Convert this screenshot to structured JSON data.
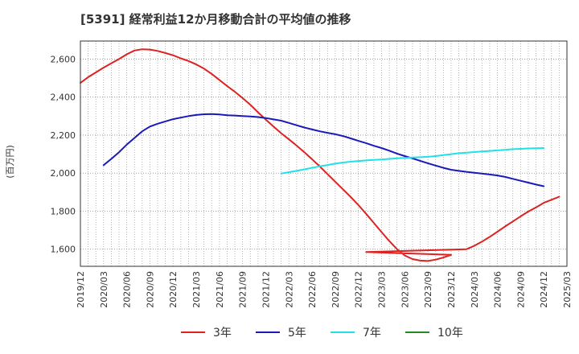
{
  "title": "[5391]  経常利益12か月移動合計の平均値の推移",
  "chart_data": {
    "type": "line",
    "title": "[5391]  経常利益12か月移動合計の平均値の推移",
    "ylabel": "(百万円)",
    "xlabel": "",
    "ylim": [
      1510,
      2695
    ],
    "x_ticks": [
      "2019/12",
      "2020/03",
      "2020/06",
      "2020/09",
      "2020/12",
      "2021/03",
      "2021/06",
      "2021/09",
      "2021/12",
      "2022/03",
      "2022/06",
      "2022/09",
      "2022/12",
      "2023/03",
      "2023/06",
      "2023/09",
      "2023/12",
      "2024/03",
      "2024/06",
      "2024/09",
      "2024/12",
      "2025/03"
    ],
    "y_ticks": [
      1600,
      1800,
      2000,
      2200,
      2400,
      2600
    ],
    "y_tick_labels": [
      "1,600",
      "1,800",
      "2,000",
      "2,200",
      "2,400",
      "2,600"
    ],
    "grid": true,
    "legend_position": "bottom",
    "series": [
      {
        "name": "3年",
        "color": "#dd2222",
        "points": [
          [
            "2019/12",
            2475
          ],
          [
            "2020/01",
            2505
          ],
          [
            "2020/02",
            2530
          ],
          [
            "2020/03",
            2555
          ],
          [
            "2020/04",
            2578
          ],
          [
            "2020/05",
            2600
          ],
          [
            "2020/06",
            2625
          ],
          [
            "2020/07",
            2645
          ],
          [
            "2020/08",
            2652
          ],
          [
            "2020/09",
            2650
          ],
          [
            "2020/10",
            2643
          ],
          [
            "2020/11",
            2632
          ],
          [
            "2020/12",
            2620
          ],
          [
            "2021/01",
            2604
          ],
          [
            "2021/02",
            2590
          ],
          [
            "2021/03",
            2572
          ],
          [
            "2021/04",
            2550
          ],
          [
            "2021/05",
            2522
          ],
          [
            "2021/06",
            2490
          ],
          [
            "2021/07",
            2458
          ],
          [
            "2021/08",
            2428
          ],
          [
            "2021/09",
            2395
          ],
          [
            "2021/10",
            2360
          ],
          [
            "2021/11",
            2320
          ],
          [
            "2021/12",
            2282
          ],
          [
            "2022/01",
            2245
          ],
          [
            "2022/02",
            2210
          ],
          [
            "2022/03",
            2178
          ],
          [
            "2022/04",
            2145
          ],
          [
            "2022/05",
            2110
          ],
          [
            "2022/06",
            2073
          ],
          [
            "2022/07",
            2035
          ],
          [
            "2022/08",
            1995
          ],
          [
            "2022/09",
            1955
          ],
          [
            "2022/10",
            1915
          ],
          [
            "2022/11",
            1875
          ],
          [
            "2022/12",
            1832
          ],
          [
            "2023/01",
            1786
          ],
          [
            "2023/02",
            1738
          ],
          [
            "2023/03",
            1690
          ],
          [
            "2023/04",
            1643
          ],
          [
            "2023/05",
            1600
          ],
          [
            "2023/06",
            1567
          ],
          [
            "2023/07",
            1548
          ],
          [
            "2023/08",
            1540
          ],
          [
            "2023/09",
            1538
          ],
          [
            "2023/10",
            1545
          ],
          [
            "2023/11",
            1556
          ],
          [
            "2023/12",
            1570
          ],
          [
            "2023/01",
            1585
          ],
          [
            "2024/02",
            1600
          ],
          [
            "2024/03",
            1618
          ],
          [
            "2024/04",
            1640
          ],
          [
            "2024/05",
            1665
          ],
          [
            "2024/06",
            1692
          ],
          [
            "2024/07",
            1720
          ],
          [
            "2024/08",
            1746
          ],
          [
            "2024/09",
            1773
          ],
          [
            "2024/10",
            1798
          ],
          [
            "2024/11",
            1820
          ],
          [
            "2024/12",
            1844
          ],
          [
            "2025/01",
            1860
          ],
          [
            "2025/02",
            1876
          ]
        ]
      },
      {
        "name": "5年",
        "color": "#1a1ab8",
        "points": [
          [
            "2020/03",
            2042
          ],
          [
            "2020/04",
            2075
          ],
          [
            "2020/05",
            2110
          ],
          [
            "2020/06",
            2150
          ],
          [
            "2020/07",
            2185
          ],
          [
            "2020/08",
            2220
          ],
          [
            "2020/09",
            2245
          ],
          [
            "2020/10",
            2260
          ],
          [
            "2020/11",
            2272
          ],
          [
            "2020/12",
            2284
          ],
          [
            "2021/01",
            2292
          ],
          [
            "2021/02",
            2300
          ],
          [
            "2021/03",
            2306
          ],
          [
            "2021/04",
            2310
          ],
          [
            "2021/05",
            2311
          ],
          [
            "2021/06",
            2309
          ],
          [
            "2021/07",
            2305
          ],
          [
            "2021/08",
            2303
          ],
          [
            "2021/09",
            2300
          ],
          [
            "2021/10",
            2298
          ],
          [
            "2021/11",
            2295
          ],
          [
            "2021/12",
            2290
          ],
          [
            "2022/01",
            2283
          ],
          [
            "2022/02",
            2276
          ],
          [
            "2022/03",
            2264
          ],
          [
            "2022/04",
            2252
          ],
          [
            "2022/05",
            2240
          ],
          [
            "2022/06",
            2230
          ],
          [
            "2022/07",
            2220
          ],
          [
            "2022/08",
            2212
          ],
          [
            "2022/09",
            2205
          ],
          [
            "2022/10",
            2195
          ],
          [
            "2022/11",
            2183
          ],
          [
            "2022/12",
            2170
          ],
          [
            "2023/01",
            2158
          ],
          [
            "2023/02",
            2144
          ],
          [
            "2023/03",
            2132
          ],
          [
            "2023/04",
            2118
          ],
          [
            "2023/05",
            2103
          ],
          [
            "2023/06",
            2090
          ],
          [
            "2023/07",
            2078
          ],
          [
            "2023/08",
            2065
          ],
          [
            "2023/09",
            2052
          ],
          [
            "2023/10",
            2040
          ],
          [
            "2023/11",
            2028
          ],
          [
            "2023/12",
            2018
          ],
          [
            "2024/01",
            2012
          ],
          [
            "2024/02",
            2007
          ],
          [
            "2024/03",
            2002
          ],
          [
            "2024/04",
            1998
          ],
          [
            "2024/05",
            1993
          ],
          [
            "2024/06",
            1988
          ],
          [
            "2024/07",
            1980
          ],
          [
            "2024/08",
            1970
          ],
          [
            "2024/09",
            1960
          ],
          [
            "2024/10",
            1950
          ],
          [
            "2024/11",
            1940
          ],
          [
            "2024/12",
            1931
          ]
        ]
      },
      {
        "name": "7年",
        "color": "#22e0e8",
        "points": [
          [
            "2022/02",
            1998
          ],
          [
            "2022/03",
            2005
          ],
          [
            "2022/04",
            2012
          ],
          [
            "2022/05",
            2020
          ],
          [
            "2022/06",
            2028
          ],
          [
            "2022/07",
            2036
          ],
          [
            "2022/08",
            2043
          ],
          [
            "2022/09",
            2050
          ],
          [
            "2022/10",
            2056
          ],
          [
            "2022/11",
            2060
          ],
          [
            "2022/12",
            2064
          ],
          [
            "2023/01",
            2067
          ],
          [
            "2023/02",
            2070
          ],
          [
            "2023/03",
            2072
          ],
          [
            "2023/04",
            2075
          ],
          [
            "2023/05",
            2078
          ],
          [
            "2023/06",
            2080
          ],
          [
            "2023/07",
            2082
          ],
          [
            "2023/08",
            2084
          ],
          [
            "2023/09",
            2086
          ],
          [
            "2023/10",
            2090
          ],
          [
            "2023/11",
            2095
          ],
          [
            "2023/12",
            2100
          ],
          [
            "2024/01",
            2105
          ],
          [
            "2024/02",
            2108
          ],
          [
            "2024/03",
            2111
          ],
          [
            "2024/04",
            2114
          ],
          [
            "2024/05",
            2117
          ],
          [
            "2024/06",
            2120
          ],
          [
            "2024/07",
            2123
          ],
          [
            "2024/08",
            2126
          ],
          [
            "2024/09",
            2128
          ],
          [
            "2024/10",
            2130
          ],
          [
            "2024/11",
            2131
          ],
          [
            "2024/12",
            2132
          ]
        ]
      },
      {
        "name": "10年",
        "color": "#228b22",
        "points": []
      }
    ]
  }
}
